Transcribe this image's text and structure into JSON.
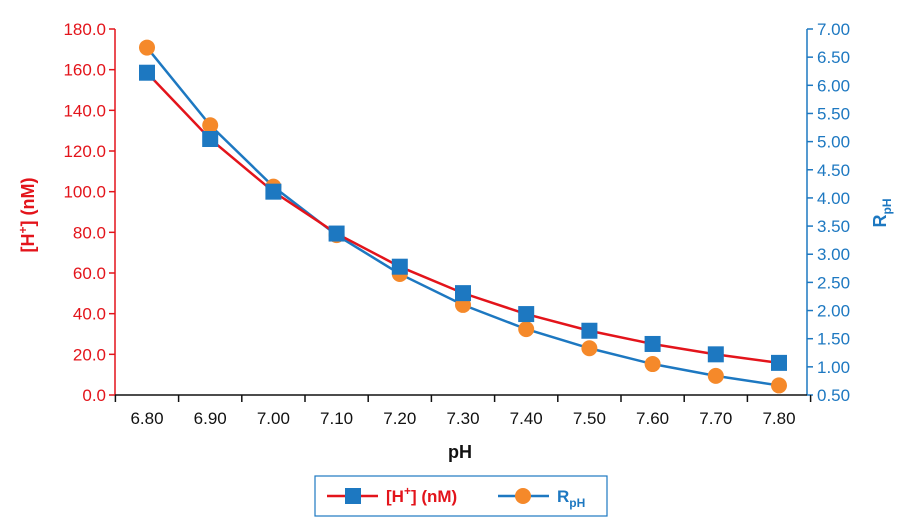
{
  "chart_data": {
    "type": "line",
    "x": [
      "6.80",
      "6.90",
      "7.00",
      "7.10",
      "7.20",
      "7.30",
      "7.40",
      "7.50",
      "7.60",
      "7.70",
      "7.80"
    ],
    "xlabel": "pH",
    "ylabel_left": {
      "main": "[H",
      "sup": "+",
      "rest": "] (nM)"
    },
    "ylabel_right": {
      "main": "R",
      "sub": "pH"
    },
    "ylim_left": [
      0,
      180
    ],
    "ylim_right": [
      0.5,
      7.0
    ],
    "yticks_left": [
      "0.0",
      "20.0",
      "40.0",
      "60.0",
      "80.0",
      "100.0",
      "120.0",
      "140.0",
      "160.0",
      "180.0"
    ],
    "yticks_right": [
      "0.50",
      "1.00",
      "1.50",
      "2.00",
      "2.50",
      "3.00",
      "3.50",
      "4.00",
      "4.50",
      "5.00",
      "5.50",
      "6.00",
      "6.50",
      "7.00"
    ],
    "grid": false,
    "legend_position": "bottom",
    "series": [
      {
        "name": {
          "main": "[H",
          "sup": "+",
          "rest": "] (nM)"
        },
        "axis": "left",
        "marker": "square",
        "values": [
          158.5,
          125.9,
          100.0,
          79.4,
          63.1,
          50.1,
          39.8,
          31.6,
          25.1,
          20.0,
          15.8
        ]
      },
      {
        "name": {
          "main": "R",
          "sub": "pH"
        },
        "axis": "right",
        "marker": "circle",
        "values": [
          6.67,
          5.29,
          4.2,
          3.34,
          2.65,
          2.1,
          1.67,
          1.33,
          1.05,
          0.84,
          0.67
        ]
      }
    ]
  },
  "colors": {
    "h_line": "#e3141b",
    "h_marker": "#1d78c1",
    "r_line": "#1d78c1",
    "r_marker": "#f5892a",
    "left_axis": "#e3141b",
    "right_axis": "#1d78c1",
    "x_axis": "#111111",
    "legend_border": "#1d78c1"
  }
}
